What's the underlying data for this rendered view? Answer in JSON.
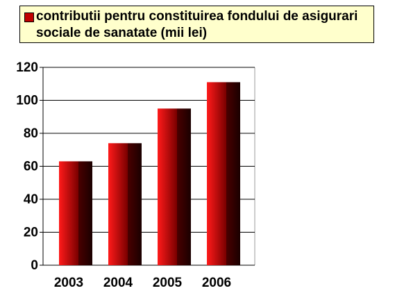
{
  "chart_data": {
    "type": "bar",
    "categories": [
      "2003",
      "2004",
      "2005",
      "2006"
    ],
    "series": [
      {
        "name": "contributii pentru constituirea fondului de asigurari sociale de sanatate (mii lei)",
        "color": "#c00000",
        "values": [
          63,
          74,
          95,
          111
        ]
      }
    ],
    "ylim": [
      0,
      120
    ],
    "yticks": [
      0,
      20,
      40,
      60,
      80,
      100,
      120
    ],
    "grid": true,
    "legend": "top"
  }
}
